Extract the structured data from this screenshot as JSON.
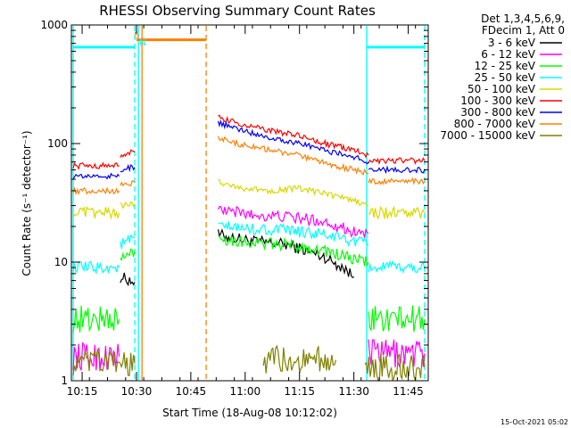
{
  "chart_data": {
    "type": "line",
    "title": "RHESSI Observing Summary Count Rates",
    "xlabel": "Start Time (18-Aug-08 10:12:02)",
    "ylabel": "Count Rate (s⁻¹ detector⁻¹)",
    "x_unit": "minutes after 10:12:02",
    "xlim": [
      0,
      98.5
    ],
    "ylim": [
      1,
      1000
    ],
    "yscale": "log",
    "x_ticks": [
      {
        "x": 2.97,
        "label": "10:15"
      },
      {
        "x": 17.97,
        "label": "10:30"
      },
      {
        "x": 32.97,
        "label": "10:45"
      },
      {
        "x": 47.97,
        "label": "11:00"
      },
      {
        "x": 62.97,
        "label": "11:15"
      },
      {
        "x": 77.97,
        "label": "11:30"
      },
      {
        "x": 92.97,
        "label": "11:45"
      }
    ],
    "y_ticks": [
      {
        "y": 1,
        "label": "1"
      },
      {
        "y": 10,
        "label": "10"
      },
      {
        "y": 100,
        "label": "100"
      },
      {
        "y": 1000,
        "label": "1000"
      }
    ],
    "legend": {
      "placement": "top-right",
      "header": [
        "Det 1,3,4,5,6,9,",
        "FDecim 1, Att 0"
      ]
    },
    "data_gap": [
      21.5,
      40.5
    ],
    "series": [
      {
        "name": "3 - 6 keV",
        "color": "#000000",
        "segments": [
          [
            [
              13.5,
              7.5
            ],
            [
              17.5,
              6.8
            ]
          ],
          [
            [
              40.5,
              17
            ],
            [
              50,
              15
            ],
            [
              60,
              14
            ],
            [
              70,
              11
            ],
            [
              75,
              9
            ],
            [
              78,
              7.5
            ]
          ]
        ]
      },
      {
        "name": "6 - 12 keV",
        "color": "#ff00ff",
        "segments": [
          [
            [
              0.5,
              1.6
            ],
            [
              13.2,
              1.6
            ]
          ],
          [
            [
              40.5,
              28
            ],
            [
              50,
              25
            ],
            [
              60,
              24
            ],
            [
              70,
              22
            ],
            [
              78,
              18
            ],
            [
              82,
              17.5
            ]
          ],
          [
            [
              82,
              1.7
            ],
            [
              97.5,
              1.7
            ]
          ]
        ]
      },
      {
        "name": "12 - 25 keV",
        "color": "#00ff00",
        "segments": [
          [
            [
              0.5,
              3.3
            ],
            [
              13.2,
              3.3
            ]
          ],
          [
            [
              13.5,
              10.5
            ],
            [
              17.5,
              12.5
            ]
          ],
          [
            [
              40.5,
              16
            ],
            [
              50,
              14.5
            ],
            [
              60,
              14
            ],
            [
              70,
              12.5
            ],
            [
              78,
              10.5
            ],
            [
              82,
              10
            ]
          ],
          [
            [
              82,
              3.3
            ],
            [
              97.5,
              3.3
            ]
          ]
        ]
      },
      {
        "name": "25 - 50 keV",
        "color": "#00ffff",
        "segments": [
          [
            [
              0.5,
              9
            ],
            [
              13.2,
              9
            ]
          ],
          [
            [
              13.5,
              14
            ],
            [
              17.5,
              16
            ]
          ],
          [
            [
              40.5,
              20
            ],
            [
              50,
              19
            ],
            [
              60,
              18.5
            ],
            [
              70,
              17
            ],
            [
              78,
              15
            ],
            [
              82,
              14
            ]
          ],
          [
            [
              82,
              9
            ],
            [
              97.5,
              9
            ]
          ]
        ]
      },
      {
        "name": "50 - 100 keV",
        "color": "#d8d800",
        "segments": [
          [
            [
              0.5,
              26
            ],
            [
              13.2,
              26
            ]
          ],
          [
            [
              13.5,
              30
            ],
            [
              17.5,
              31
            ]
          ],
          [
            [
              40.5,
              48
            ],
            [
              47,
              42
            ],
            [
              55,
              40
            ],
            [
              62,
              42
            ],
            [
              70,
              38
            ],
            [
              78,
              33
            ],
            [
              82,
              30
            ]
          ],
          [
            [
              82,
              26
            ],
            [
              97.5,
              26
            ]
          ]
        ]
      },
      {
        "name": "100 - 300 keV",
        "color": "#ff0000",
        "segments": [
          [
            [
              0.5,
              65
            ],
            [
              13.2,
              65
            ]
          ],
          [
            [
              13.5,
              80
            ],
            [
              17.5,
              85
            ]
          ],
          [
            [
              40.5,
              165
            ],
            [
              47,
              145
            ],
            [
              55,
              128
            ],
            [
              62,
              118
            ],
            [
              70,
              100
            ],
            [
              78,
              88
            ],
            [
              82,
              80
            ]
          ],
          [
            [
              82,
              72
            ],
            [
              97.5,
              72
            ]
          ]
        ]
      },
      {
        "name": "300 - 800 keV",
        "color": "#0000ff",
        "segments": [
          [
            [
              0.5,
              53
            ],
            [
              13.2,
              53
            ]
          ],
          [
            [
              13.5,
              60
            ],
            [
              17.5,
              63
            ]
          ],
          [
            [
              40.5,
              150
            ],
            [
              47,
              130
            ],
            [
              55,
              112
            ],
            [
              62,
              102
            ],
            [
              70,
              88
            ],
            [
              78,
              77
            ],
            [
              82,
              70
            ]
          ],
          [
            [
              82,
              60
            ],
            [
              97.5,
              60
            ]
          ]
        ]
      },
      {
        "name": "800 - 7000 keV",
        "color": "#ff8000",
        "segments": [
          [
            [
              0.5,
              40
            ],
            [
              13.2,
              40
            ]
          ],
          [
            [
              13.5,
              45
            ],
            [
              17.5,
              47
            ]
          ],
          [
            [
              40.5,
              112
            ],
            [
              47,
              98
            ],
            [
              55,
              88
            ],
            [
              62,
              80
            ],
            [
              70,
              68
            ],
            [
              78,
              60
            ],
            [
              82,
              56
            ]
          ],
          [
            [
              82,
              48
            ],
            [
              97.5,
              48
            ]
          ]
        ]
      },
      {
        "name": "7000 - 15000 keV",
        "color": "#808000",
        "segments": [
          [
            [
              0.5,
              1.4
            ],
            [
              17.5,
              1.4
            ]
          ],
          [
            [
              53,
              1.5
            ],
            [
              73,
              1.5
            ]
          ],
          [
            [
              81,
              1.3
            ],
            [
              97.5,
              1.3
            ]
          ]
        ]
      }
    ],
    "annotations": {
      "flags": [
        {
          "name": "SAA",
          "label": "S",
          "color": "#ff8000",
          "x": 17.97,
          "x2": 37.2,
          "y": 750
        },
        {
          "name": "Night",
          "label": "N",
          "color": "#00ffff",
          "x": 19.5,
          "y": 650
        }
      ],
      "cyan_level_segments": [
        [
          0.5,
          17.5,
          650
        ],
        [
          81.5,
          97.5,
          650
        ]
      ],
      "vertical_markers": [
        {
          "x": 17.5,
          "color": "#00ffff",
          "style": "dashed"
        },
        {
          "x": 18.5,
          "color": "#00ffff",
          "style": "solid"
        },
        {
          "x": 19.5,
          "color": "#ff8000",
          "style": "solid"
        },
        {
          "x": 37.2,
          "color": "#ff8000",
          "style": "dashed"
        },
        {
          "x": 0.5,
          "color": "#00ffff",
          "style": "solid"
        },
        {
          "x": 81.5,
          "color": "#00ffff",
          "style": "solid"
        },
        {
          "x": 97.5,
          "color": "#00ffff",
          "style": "dashed"
        }
      ]
    }
  },
  "footer": {
    "timestamp": "15-Oct-2021 05:02"
  }
}
